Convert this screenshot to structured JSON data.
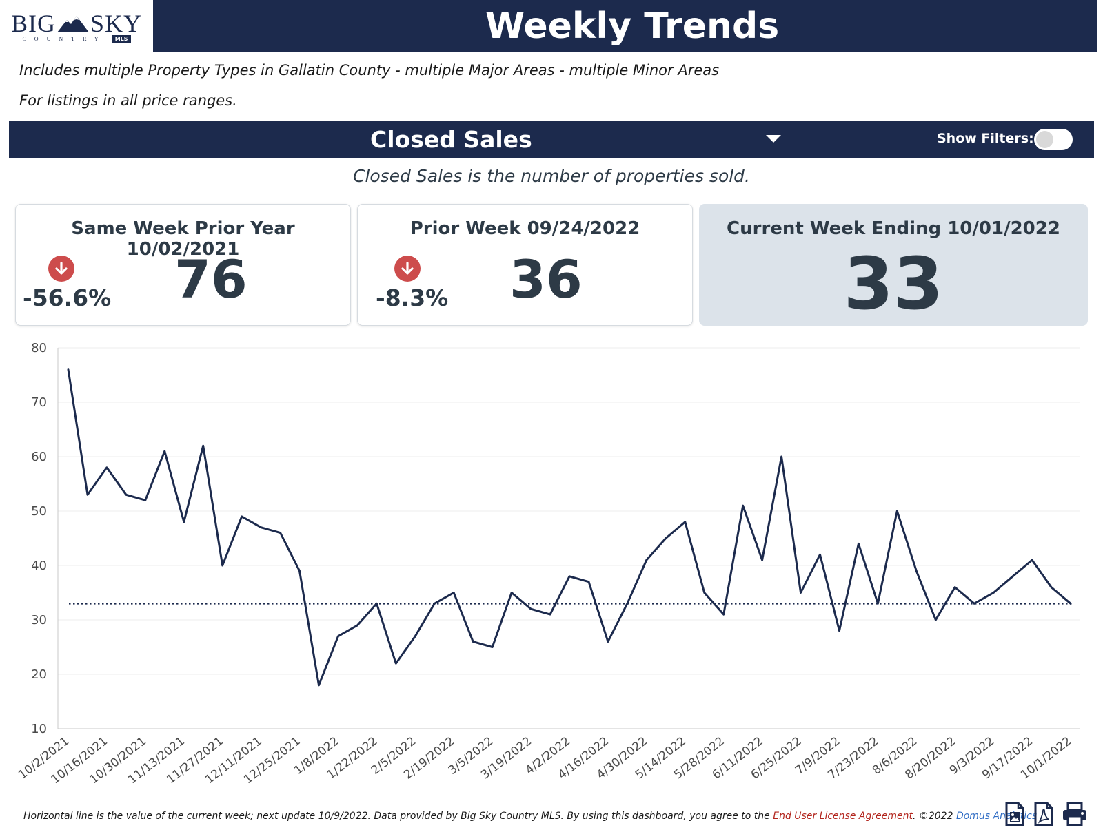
{
  "header": {
    "logo_text_left": "BIG",
    "logo_text_right": "SKY",
    "logo_country": "COUNTRY",
    "logo_mls": "MLS",
    "title": "Weekly Trends"
  },
  "description": {
    "line1": "Includes multiple Property Types in Gallatin County - multiple Major Areas - multiple Minor Areas",
    "line2": "For listings in all price ranges."
  },
  "metric_bar": {
    "selected_metric": "Closed Sales",
    "show_filters_label": "Show Filters:",
    "show_filters_on": false
  },
  "metric_description": "Closed Sales is the number of properties sold.",
  "cards": {
    "prior_year": {
      "title": "Same Week Prior Year 10/02/2021",
      "change": "-56.6%",
      "value": "76"
    },
    "prior_week": {
      "title": "Prior Week 09/24/2022",
      "change": "-8.3%",
      "value": "36"
    },
    "current": {
      "title": "Current Week Ending 10/01/2022",
      "value": "33"
    }
  },
  "colors": {
    "navy": "#1c2a4d",
    "down_arrow": "#cd4c4c",
    "current_card_bg": "#dce3ea"
  },
  "chart_data": {
    "type": "line",
    "title": "Closed Sales",
    "xlabel": "",
    "ylabel": "",
    "ylim": [
      10,
      80
    ],
    "yticks": [
      10,
      20,
      30,
      40,
      50,
      60,
      70,
      80
    ],
    "x_tick_labels": [
      "10/2/2021",
      "10/16/2021",
      "10/30/2021",
      "11/13/2021",
      "11/27/2021",
      "12/11/2021",
      "12/25/2021",
      "1/8/2022",
      "1/22/2022",
      "2/5/2022",
      "2/19/2022",
      "3/5/2022",
      "3/19/2022",
      "4/2/2022",
      "4/16/2022",
      "4/30/2022",
      "5/14/2022",
      "5/28/2022",
      "6/11/2022",
      "6/25/2022",
      "7/9/2022",
      "7/23/2022",
      "8/6/2022",
      "8/20/2022",
      "9/3/2022",
      "9/17/2022",
      "10/1/2022"
    ],
    "series": [
      {
        "name": "Closed Sales",
        "values": [
          76,
          53,
          58,
          53,
          52,
          61,
          48,
          62,
          40,
          49,
          47,
          46,
          39,
          18,
          27,
          29,
          33,
          22,
          27,
          33,
          35,
          26,
          25,
          35,
          32,
          31,
          38,
          37,
          26,
          33,
          41,
          45,
          48,
          35,
          31,
          51,
          41,
          60,
          35,
          42,
          28,
          44,
          33,
          50,
          39,
          30,
          36,
          33,
          35,
          38,
          41,
          36,
          33
        ]
      }
    ],
    "reference_line": {
      "value": 33,
      "style": "dotted",
      "label": "current week"
    }
  },
  "footer": {
    "text": "Horizontal line is the value of the current week; next update 10/9/2022.  Data provided by Big Sky Country MLS. By using this dashboard, you agree to the ",
    "eula_link": "End User License Agreement",
    "copyright": ".  ©2022 ",
    "domus_link": "Domus Analytics"
  },
  "icons": [
    "export-image-icon",
    "export-pdf-icon",
    "print-icon"
  ]
}
